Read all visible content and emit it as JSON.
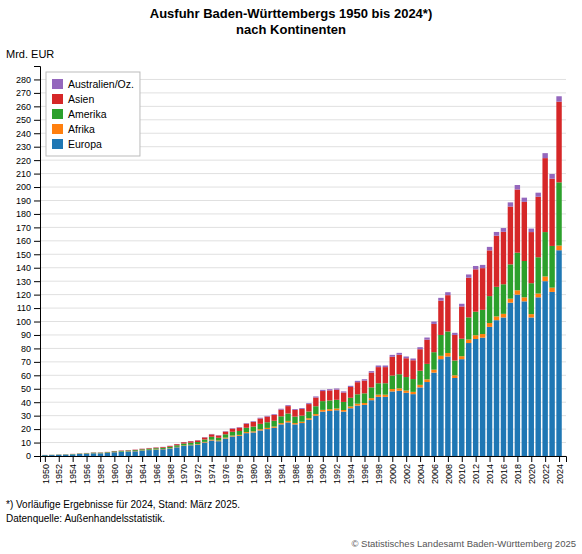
{
  "chart_data": {
    "type": "bar",
    "stacked": true,
    "title": "Ausfuhr Baden-Württembergs 1950 bis 2024*)\nnach Kontinenten",
    "ylabel": "Mrd. EUR",
    "annotations": [
      "*) Vorläufige Ergebnisse für 2024, Stand: März 2025.",
      "Datenquelle: Außenhandelsstatistik.",
      "© Statistisches Landesamt Baden-Württemberg 2025"
    ],
    "x": [
      1950,
      1951,
      1952,
      1953,
      1954,
      1955,
      1956,
      1957,
      1958,
      1959,
      1960,
      1961,
      1962,
      1963,
      1964,
      1965,
      1966,
      1967,
      1968,
      1969,
      1970,
      1971,
      1972,
      1973,
      1974,
      1975,
      1976,
      1977,
      1978,
      1979,
      1980,
      1981,
      1982,
      1983,
      1984,
      1985,
      1986,
      1987,
      1988,
      1989,
      1990,
      1991,
      1992,
      1993,
      1994,
      1995,
      1996,
      1997,
      1998,
      1999,
      2000,
      2001,
      2002,
      2003,
      2004,
      2005,
      2006,
      2007,
      2008,
      2009,
      2010,
      2011,
      2012,
      2013,
      2014,
      2015,
      2016,
      2017,
      2018,
      2019,
      2020,
      2021,
      2022,
      2023,
      2024
    ],
    "series": [
      {
        "name": "Europa",
        "values": [
          0.6,
          0.7,
          0.9,
          1.0,
          1.2,
          1.5,
          1.7,
          2.0,
          2.0,
          2.3,
          2.8,
          3.1,
          3.3,
          3.5,
          4.0,
          4.4,
          4.7,
          5.0,
          5.6,
          6.5,
          7.5,
          8.0,
          8.5,
          10.0,
          11.5,
          11.0,
          13.0,
          14.5,
          15.0,
          17.0,
          17.5,
          19.0,
          20.0,
          21.0,
          23.5,
          25.0,
          23.5,
          24.5,
          27.0,
          30.0,
          33.0,
          33.5,
          34.0,
          33.0,
          35.5,
          37.5,
          38.0,
          41.5,
          44.0,
          44.0,
          48.0,
          48.5,
          47.0,
          46.0,
          51.0,
          55.0,
          62.0,
          72.0,
          74.0,
          58.0,
          72.0,
          84.0,
          87.0,
          88.0,
          96.0,
          101.0,
          103.0,
          114.0,
          120.0,
          115.0,
          103.0,
          118.0,
          130.0,
          122.0,
          153.0
        ]
      },
      {
        "name": "Afrika",
        "values": [
          0.05,
          0.05,
          0.06,
          0.06,
          0.07,
          0.08,
          0.1,
          0.12,
          0.12,
          0.13,
          0.15,
          0.17,
          0.18,
          0.2,
          0.22,
          0.24,
          0.25,
          0.25,
          0.27,
          0.3,
          0.35,
          0.38,
          0.4,
          0.5,
          0.6,
          0.55,
          0.65,
          0.7,
          0.7,
          0.8,
          0.85,
          0.9,
          0.9,
          0.9,
          1.0,
          1.1,
          1.0,
          1.0,
          1.1,
          1.2,
          1.3,
          1.3,
          1.3,
          1.2,
          1.3,
          1.4,
          1.4,
          1.5,
          1.6,
          1.6,
          1.8,
          1.8,
          1.7,
          1.7,
          1.9,
          2.0,
          2.2,
          2.5,
          2.6,
          2.0,
          2.2,
          2.6,
          2.8,
          2.7,
          2.9,
          2.8,
          2.7,
          3.0,
          3.2,
          3.0,
          2.5,
          2.8,
          3.5,
          3.2,
          3.5
        ]
      },
      {
        "name": "Amerika",
        "values": [
          0.1,
          0.12,
          0.15,
          0.16,
          0.2,
          0.25,
          0.3,
          0.35,
          0.35,
          0.4,
          0.5,
          0.55,
          0.6,
          0.65,
          0.75,
          0.8,
          0.85,
          0.9,
          1.0,
          1.2,
          1.4,
          1.5,
          1.5,
          1.8,
          2.2,
          2.0,
          2.5,
          2.8,
          2.9,
          3.2,
          3.5,
          4.0,
          4.2,
          4.3,
          5.0,
          5.5,
          4.8,
          4.5,
          5.0,
          5.8,
          6.5,
          6.5,
          6.5,
          6.0,
          6.5,
          7.0,
          7.2,
          8.0,
          8.5,
          8.5,
          10.0,
          10.5,
          10.0,
          9.5,
          10.5,
          11.5,
          13.0,
          15.5,
          16.0,
          11.0,
          13.0,
          16.5,
          17.5,
          18.0,
          20.0,
          22.0,
          22.0,
          25.5,
          28.0,
          27.0,
          23.0,
          27.0,
          33.0,
          31.0,
          47.0
        ]
      },
      {
        "name": "Asien",
        "values": [
          0.05,
          0.06,
          0.07,
          0.08,
          0.1,
          0.12,
          0.15,
          0.18,
          0.18,
          0.2,
          0.25,
          0.28,
          0.3,
          0.35,
          0.4,
          0.45,
          0.5,
          0.55,
          0.65,
          0.8,
          1.0,
          1.1,
          1.2,
          1.5,
          1.8,
          1.7,
          2.0,
          2.3,
          2.5,
          3.0,
          3.5,
          4.0,
          4.2,
          4.3,
          5.0,
          5.5,
          5.0,
          5.0,
          5.5,
          6.5,
          7.5,
          7.5,
          7.5,
          7.0,
          8.0,
          9.0,
          9.5,
          11.0,
          12.0,
          12.0,
          14.0,
          14.5,
          14.0,
          14.0,
          16.0,
          18.0,
          21.0,
          25.5,
          27.0,
          19.0,
          24.0,
          29.5,
          31.5,
          31.0,
          34.0,
          38.0,
          39.0,
          43.0,
          47.0,
          44.0,
          38.0,
          45.0,
          55.0,
          50.0,
          60.0
        ]
      },
      {
        "name": "Australien/Oz.",
        "values": [
          0.02,
          0.02,
          0.02,
          0.02,
          0.03,
          0.03,
          0.04,
          0.04,
          0.04,
          0.05,
          0.06,
          0.06,
          0.07,
          0.08,
          0.09,
          0.1,
          0.1,
          0.1,
          0.12,
          0.14,
          0.16,
          0.18,
          0.2,
          0.25,
          0.3,
          0.28,
          0.33,
          0.38,
          0.4,
          0.45,
          0.5,
          0.55,
          0.55,
          0.55,
          0.65,
          0.7,
          0.65,
          0.65,
          0.7,
          0.8,
          0.9,
          0.9,
          0.9,
          0.85,
          0.9,
          1.0,
          1.0,
          1.1,
          1.2,
          1.2,
          1.4,
          1.4,
          1.3,
          1.3,
          1.5,
          1.6,
          1.8,
          2.1,
          2.2,
          1.6,
          2.0,
          2.4,
          2.5,
          2.4,
          2.6,
          2.8,
          2.8,
          3.1,
          3.3,
          3.1,
          2.6,
          3.0,
          3.7,
          3.5,
          4.0
        ]
      }
    ],
    "xlim": [
      1949.3,
      2025.0
    ],
    "xticks": [
      1950,
      1952,
      1954,
      1956,
      1958,
      1960,
      1962,
      1964,
      1966,
      1968,
      1970,
      1972,
      1974,
      1976,
      1978,
      1980,
      1982,
      1984,
      1986,
      1988,
      1990,
      1992,
      1994,
      1996,
      1998,
      2000,
      2002,
      2004,
      2006,
      2008,
      2010,
      2012,
      2014,
      2016,
      2018,
      2020,
      2022,
      2024
    ],
    "ylim": [
      0,
      290
    ],
    "yticks": [
      0,
      10,
      20,
      30,
      40,
      50,
      60,
      70,
      80,
      90,
      100,
      110,
      120,
      130,
      140,
      150,
      160,
      170,
      180,
      190,
      200,
      210,
      220,
      230,
      240,
      250,
      260,
      270,
      280
    ],
    "grid": true,
    "legend": "upper left"
  }
}
